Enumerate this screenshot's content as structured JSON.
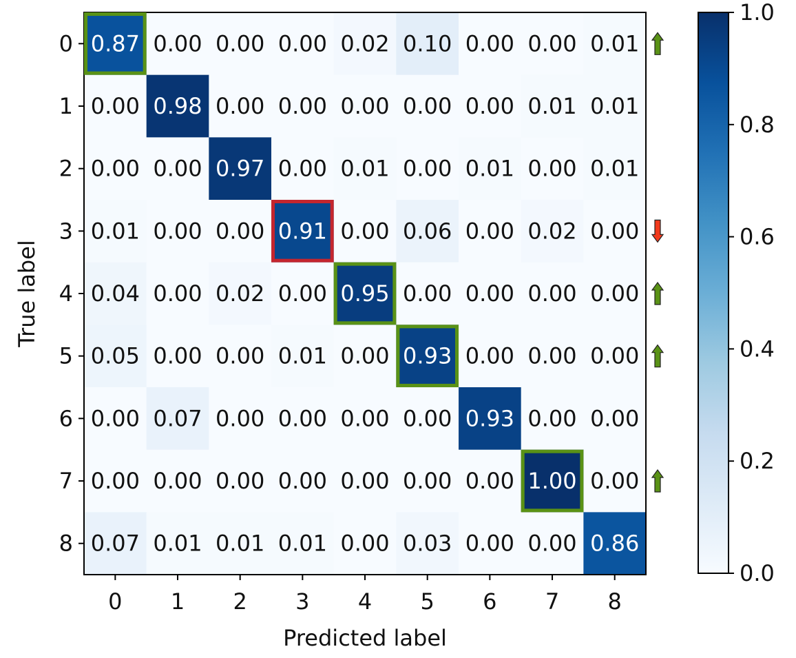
{
  "chart_data": {
    "type": "heatmap",
    "title": "",
    "xlabel": "Predicted label",
    "ylabel": "True label",
    "x_categories": [
      "0",
      "1",
      "2",
      "3",
      "4",
      "5",
      "6",
      "7",
      "8"
    ],
    "y_categories": [
      "0",
      "1",
      "2",
      "3",
      "4",
      "5",
      "6",
      "7",
      "8"
    ],
    "value_range": [
      0,
      1
    ],
    "colormap": "Blues",
    "values": [
      [
        0.87,
        0.0,
        0.0,
        0.0,
        0.02,
        0.1,
        0.0,
        0.0,
        0.01
      ],
      [
        0.0,
        0.98,
        0.0,
        0.0,
        0.0,
        0.0,
        0.0,
        0.01,
        0.01
      ],
      [
        0.0,
        0.0,
        0.97,
        0.0,
        0.01,
        0.0,
        0.01,
        0.0,
        0.01
      ],
      [
        0.01,
        0.0,
        0.0,
        0.91,
        0.0,
        0.06,
        0.0,
        0.02,
        0.0
      ],
      [
        0.04,
        0.0,
        0.02,
        0.0,
        0.95,
        0.0,
        0.0,
        0.0,
        0.0
      ],
      [
        0.05,
        0.0,
        0.0,
        0.01,
        0.0,
        0.93,
        0.0,
        0.0,
        0.0
      ],
      [
        0.0,
        0.07,
        0.0,
        0.0,
        0.0,
        0.0,
        0.93,
        0.0,
        0.0
      ],
      [
        0.0,
        0.0,
        0.0,
        0.0,
        0.0,
        0.0,
        0.0,
        1.0,
        0.0
      ],
      [
        0.07,
        0.01,
        0.01,
        0.01,
        0.0,
        0.03,
        0.0,
        0.0,
        0.86
      ]
    ],
    "colorbar": {
      "ticks": [
        0.0,
        0.2,
        0.4,
        0.6,
        0.8,
        1.0
      ],
      "tick_labels": [
        "0.0",
        "0.2",
        "0.4",
        "0.6",
        "0.8",
        "1.0"
      ]
    },
    "highlights": [
      {
        "row": 0,
        "col": 0,
        "color": "#5a9216",
        "arrow": "up"
      },
      {
        "row": 3,
        "col": 3,
        "color": "#c4262e",
        "arrow": "down"
      },
      {
        "row": 4,
        "col": 4,
        "color": "#5a9216",
        "arrow": "up"
      },
      {
        "row": 5,
        "col": 5,
        "color": "#5a9216",
        "arrow": "up"
      },
      {
        "row": 7,
        "col": 7,
        "color": "#5a9216",
        "arrow": "up"
      }
    ],
    "colors": {
      "up_arrow": "#5a9216",
      "down_arrow": "#f23a1c",
      "text_dark": "#111111",
      "text_light": "#ffffff"
    }
  }
}
